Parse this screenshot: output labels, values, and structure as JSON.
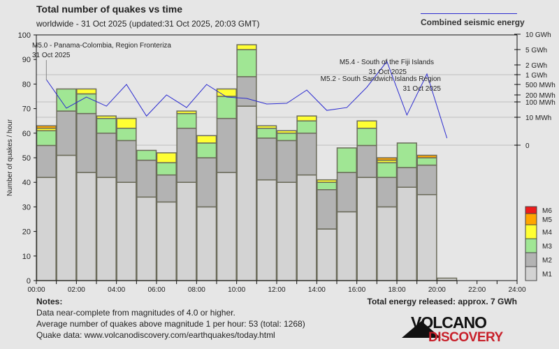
{
  "header": {
    "title": "Total number of quakes vs time",
    "subtitle": "worldwide - 31 Oct 2025 (updated:31 Oct 2025, 20:03 GMT)",
    "line_legend": "Combined seismic energy"
  },
  "colors": {
    "M1": "#d3d3d3",
    "M2": "#b3b3b3",
    "M3": "#a0e694",
    "M4": "#ffff33",
    "M5": "#ffa500",
    "M6": "#ee1c1c",
    "line": "#2b2bd0",
    "background": "#e6e6e6",
    "logo_red": "#c8202a"
  },
  "chart_data": {
    "type": "bar",
    "stacked": true,
    "title": "Total number of quakes vs time",
    "ylabel": "Number of quakes / hour",
    "xlabel": "",
    "ylim": [
      0,
      100
    ],
    "yticks": [
      0,
      10,
      20,
      30,
      40,
      50,
      60,
      70,
      80,
      90,
      100
    ],
    "xlim": [
      0,
      24
    ],
    "xtick_labels": [
      "00:00",
      "02:00",
      "04:00",
      "06:00",
      "08:00",
      "10:00",
      "12:00",
      "14:00",
      "16:00",
      "18:00",
      "20:00",
      "22:00",
      "24:00"
    ],
    "hours": [
      0,
      1,
      2,
      3,
      4,
      5,
      6,
      7,
      8,
      9,
      10,
      11,
      12,
      13,
      14,
      15,
      16,
      17,
      18,
      19,
      20
    ],
    "series": [
      {
        "name": "M1",
        "values": [
          42,
          51,
          44,
          42,
          40,
          34,
          32,
          40,
          30,
          44,
          71,
          41,
          40,
          43,
          21,
          28,
          42,
          30,
          38,
          35,
          1
        ]
      },
      {
        "name": "M2",
        "values": [
          13,
          18,
          24,
          18,
          17,
          15,
          11,
          22,
          20,
          22,
          12,
          17,
          17,
          17,
          16,
          16,
          13,
          12,
          8,
          12,
          0
        ]
      },
      {
        "name": "M3",
        "values": [
          6,
          9,
          8,
          6,
          5,
          4,
          5,
          6,
          6,
          9,
          11,
          4,
          3,
          5,
          3,
          10,
          7,
          6,
          10,
          3,
          0
        ]
      },
      {
        "name": "M4",
        "values": [
          1,
          0,
          2,
          1,
          4,
          0,
          4,
          1,
          3,
          3,
          2,
          1,
          1,
          2,
          1,
          0,
          3,
          1,
          0,
          0,
          0
        ]
      },
      {
        "name": "M5",
        "values": [
          1,
          0,
          0,
          0,
          0,
          0,
          0,
          0,
          0,
          0,
          0,
          0,
          0,
          0,
          0,
          0,
          0,
          1,
          0,
          1,
          0
        ]
      },
      {
        "name": "M6",
        "values": [
          0,
          0,
          0,
          0,
          0,
          0,
          0,
          0,
          0,
          0,
          0,
          0,
          0,
          0,
          0,
          0,
          0,
          0,
          0,
          0,
          0
        ]
      }
    ],
    "legend": [
      "M6",
      "M5",
      "M4",
      "M3",
      "M2",
      "M1"
    ],
    "legend_placement": "right-bottom",
    "energy_axis": {
      "tick_labels": [
        "10 GWh",
        "5 GWh",
        "2 GWh",
        "1 GWh",
        "500 MWh",
        "200 MWh",
        "100 MWh",
        "10 MWh",
        "0"
      ],
      "tick_values_mwh": [
        10000,
        5000,
        2000,
        1000,
        500,
        200,
        100,
        10,
        0
      ]
    },
    "energy_line": {
      "name": "Combined seismic energy",
      "hours": [
        0,
        1,
        2,
        3,
        4,
        5,
        6,
        7,
        8,
        9,
        10,
        11,
        12,
        13,
        14,
        15,
        16,
        17,
        18,
        19,
        20
      ],
      "values_mwh": [
        707,
        39,
        162,
        53,
        500,
        12,
        200,
        43,
        500,
        162,
        141,
        73,
        81,
        307,
        28,
        43,
        392,
        2460,
        14,
        1050,
        2.5
      ]
    },
    "annotations": [
      {
        "line1": "M5.0 - Panama-Colombia, Region Fronteriza",
        "line2": "31 Oct 2025",
        "hour": 0
      },
      {
        "line1": "M5.4 - South of the Fiji Islands",
        "line2": "31 Oct 2025",
        "hour": 17
      },
      {
        "line1": "M5.2 - South Sandwich Islands Region",
        "line2": "31 Oct 2025",
        "hour": 19
      }
    ]
  },
  "footer": {
    "notes_title": "Notes:",
    "notes": [
      "Data near-complete from magnitudes of 4.0 or higher.",
      "Average number of quakes above magnitude 1 per hour: 53 (total: 1268)",
      "Quake data: www.volcanodiscovery.com/earthquakes/today.html"
    ],
    "total_energy": "Total energy released: approx. 7 GWh",
    "logo": {
      "line1": "VOLCANO",
      "line2": "DISCOVERY"
    }
  }
}
